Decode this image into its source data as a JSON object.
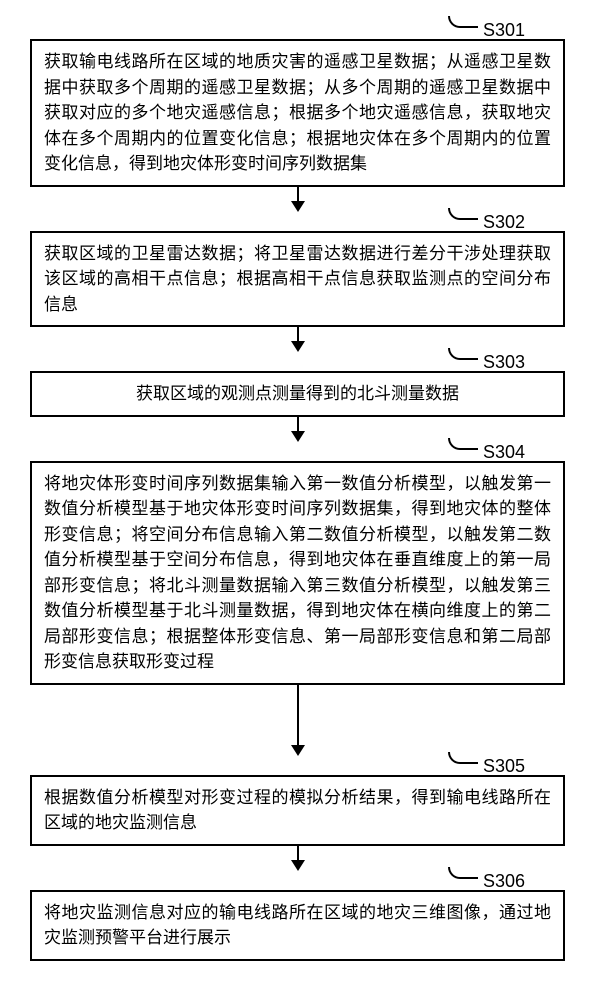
{
  "flowchart": {
    "background_color": "#ffffff",
    "border_color": "#000000",
    "border_width": 2,
    "text_color": "#000000",
    "font_size": 17,
    "label_font_size": 18,
    "steps": [
      {
        "id": "S301",
        "label": "S301",
        "text": "获取输电线路所在区域的地质灾害的遥感卫星数据；从遥感卫星数据中获取多个周期的遥感卫星数据；从多个周期的遥感卫星数据中获取对应的多个地灾遥感信息；根据多个地灾遥感信息，获取地灾体在多个周期内的位置变化信息；根据地灾体在多个周期内的位置变化信息，得到地灾体形变时间序列数据集",
        "arrow_after": "short"
      },
      {
        "id": "S302",
        "label": "S302",
        "text": "获取区域的卫星雷达数据；将卫星雷达数据进行差分干涉处理获取该区域的高相干点信息；根据高相干点信息获取监测点的空间分布信息",
        "arrow_after": "short"
      },
      {
        "id": "S303",
        "label": "S303",
        "text": "获取区域的观测点测量得到的北斗测量数据",
        "text_align": "center",
        "arrow_after": "short"
      },
      {
        "id": "S304",
        "label": "S304",
        "text": "将地灾体形变时间序列数据集输入第一数值分析模型，以触发第一数值分析模型基于地灾体形变时间序列数据集，得到地灾体的整体形变信息；将空间分布信息输入第二数值分析模型，以触发第二数值分析模型基于空间分布信息，得到地灾体在垂直维度上的第一局部形变信息；将北斗测量数据输入第三数值分析模型，以触发第三数值分析模型基于北斗测量数据，得到地灾体在横向维度上的第二局部形变信息；根据整体形变信息、第一局部形变信息和第二局部形变信息获取形变过程",
        "arrow_after": "long"
      },
      {
        "id": "S305",
        "label": "S305",
        "text": "根据数值分析模型对形变过程的模拟分析结果，得到输电线路所在区域的地灾监测信息",
        "arrow_after": "short"
      },
      {
        "id": "S306",
        "label": "S306",
        "text": "将地灾监测信息对应的输电线路所在区域的地灾三维图像，通过地灾监测预警平台进行展示",
        "arrow_after": null
      }
    ]
  }
}
